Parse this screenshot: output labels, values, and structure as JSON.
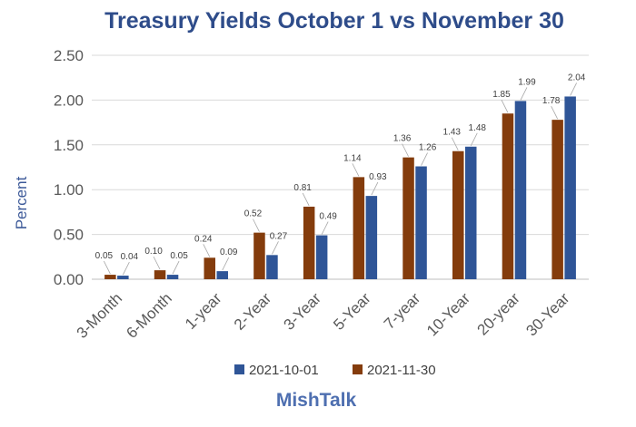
{
  "chart_data": {
    "type": "bar",
    "title": "Treasury Yields October 1 vs November 30",
    "ylabel": "Percent",
    "xlabel": "",
    "ylim": [
      0,
      2.5
    ],
    "yticks": [
      "0.00",
      "0.50",
      "1.00",
      "1.50",
      "2.00",
      "2.50"
    ],
    "categories": [
      "3-Month",
      "6-Month",
      "1-year",
      "2-Year",
      "3-Year",
      "5-Year",
      "7-year",
      "10-Year",
      "20-year",
      "30-Year"
    ],
    "series": [
      {
        "name": "2021-11-30",
        "color": "#843c0c",
        "values": [
          0.05,
          0.1,
          0.24,
          0.52,
          0.81,
          1.14,
          1.36,
          1.43,
          1.85,
          1.78
        ],
        "labels": [
          "0.05",
          "0.10",
          "0.24",
          "0.52",
          "0.81",
          "1.14",
          "1.36",
          "1.43",
          "1.85",
          "1.78"
        ]
      },
      {
        "name": "2021-10-01",
        "color": "#2f5597",
        "values": [
          0.04,
          0.05,
          0.09,
          0.27,
          0.49,
          0.93,
          1.26,
          1.48,
          1.99,
          2.04
        ],
        "labels": [
          "0.04",
          "0.05",
          "0.09",
          "0.27",
          "0.49",
          "0.93",
          "1.26",
          "1.48",
          "1.99",
          "2.04"
        ]
      }
    ],
    "grid": true,
    "legend_position": "bottom",
    "legend_order": [
      "2021-10-01",
      "2021-11-30"
    ]
  },
  "branding": {
    "text": "MishTalk"
  }
}
